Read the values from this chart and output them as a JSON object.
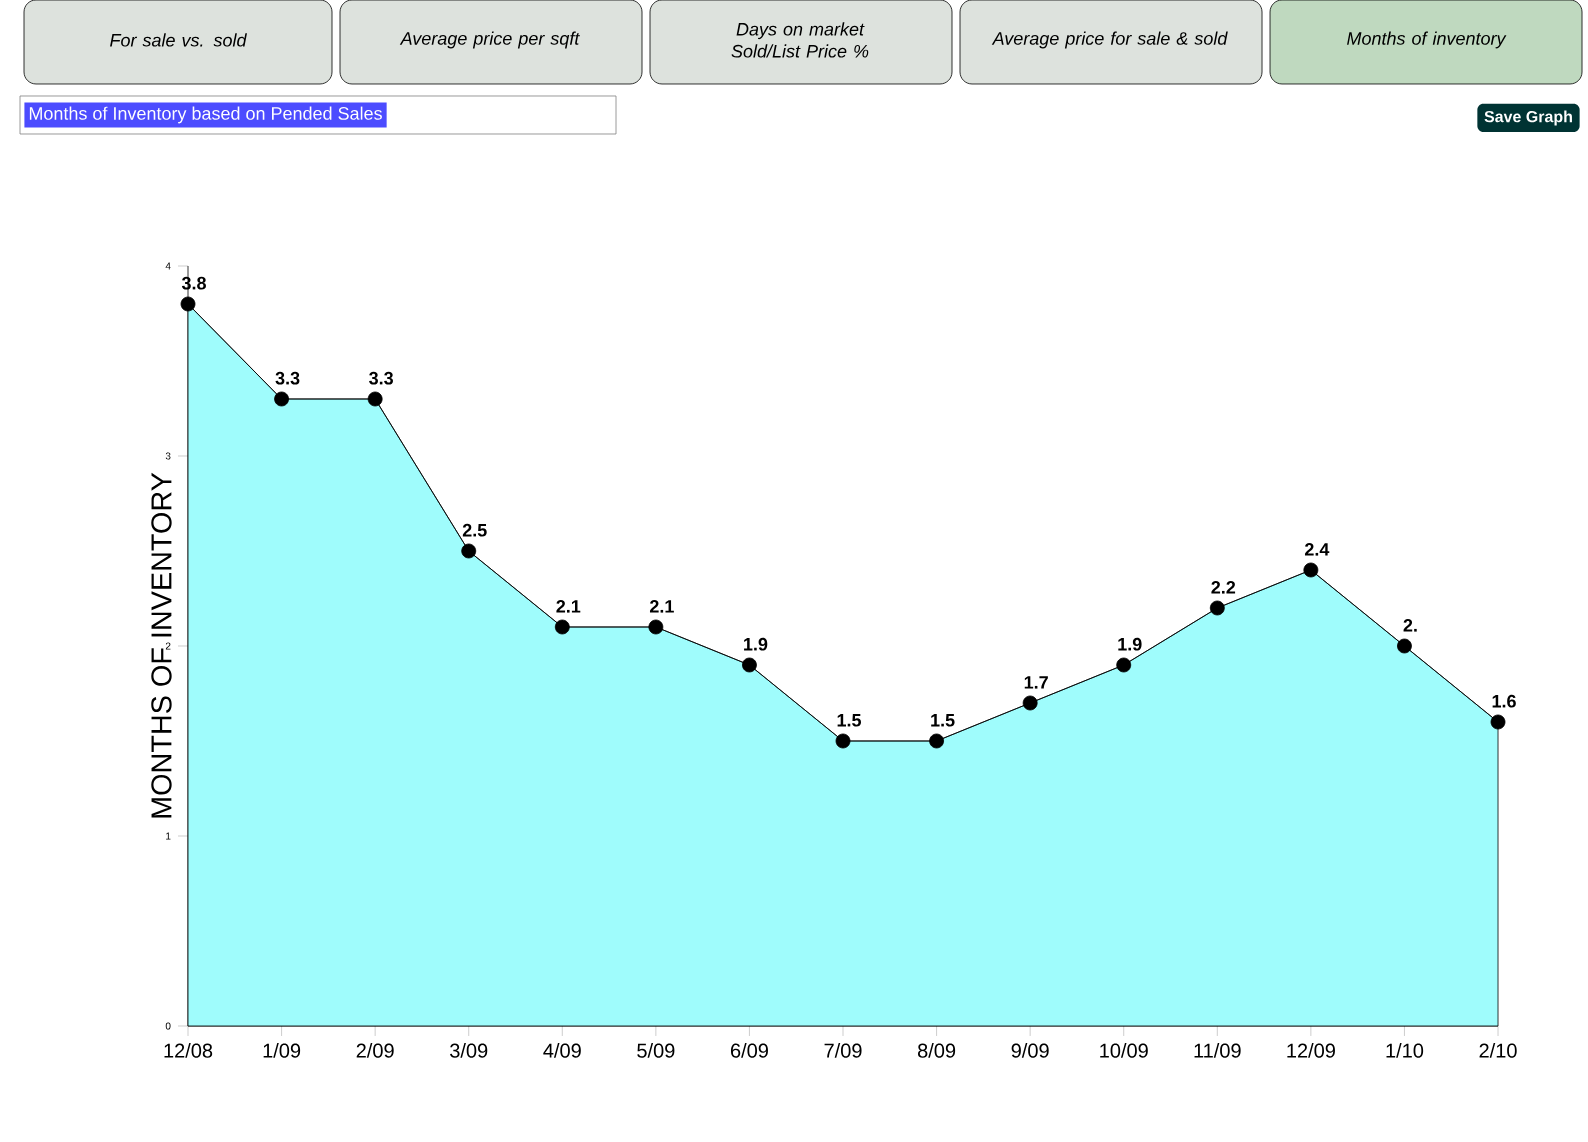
{
  "chart_data": {
    "type": "area",
    "title": "Months of Inventory based on Pended Sales",
    "ylabel": "MONTHS OF INVENTORY",
    "annotations": [
      "For sale vs. sold",
      "Average price per sqft",
      "Days on market Sold/List Price %",
      "Average price for sale & sold",
      "Months of inventory",
      "Save Graph"
    ],
    "categories": [
      "12/08",
      "1/09",
      "2/09",
      "3/09",
      "4/09",
      "5/09",
      "6/09",
      "7/09",
      "8/09",
      "9/09",
      "10/09",
      "11/09",
      "12/09",
      "1/10",
      "2/10"
    ],
    "values": [
      3.8,
      3.3,
      3.3,
      2.5,
      2.1,
      2.1,
      1.9,
      1.5,
      1.5,
      1.7,
      1.9,
      2.2,
      2.4,
      2.0,
      1.6
    ],
    "value_labels": [
      "3.8",
      "3.3",
      "3.3",
      "2.5",
      "2.1",
      "2.1",
      "1.9",
      "1.5",
      "1.5",
      "1.7",
      "1.9",
      "2.2",
      "2.4",
      "2.",
      "1.6"
    ],
    "color": "#9ffcfc",
    "ylim": [
      0,
      4
    ],
    "yticks": [
      0,
      1,
      2,
      3,
      4
    ],
    "grid": false,
    "marker": "circle"
  }
}
